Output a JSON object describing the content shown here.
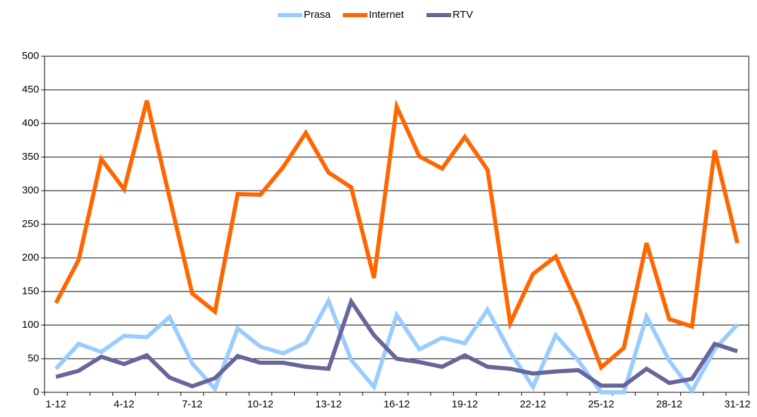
{
  "chart_data": {
    "type": "line",
    "categories": [
      "1-12",
      null,
      null,
      "4-12",
      null,
      null,
      "7-12",
      null,
      null,
      "10-12",
      null,
      null,
      "13-12",
      null,
      null,
      "16-12",
      null,
      null,
      "19-12",
      null,
      null,
      "22-12",
      null,
      null,
      "25-12",
      null,
      null,
      "28-12",
      null,
      null,
      "31-12"
    ],
    "series": [
      {
        "name": "Prasa",
        "color": "#99ccff",
        "values": [
          35,
          72,
          60,
          84,
          82,
          112,
          43,
          5,
          95,
          68,
          58,
          74,
          136,
          48,
          8,
          115,
          64,
          81,
          73,
          123,
          60,
          8,
          85,
          47,
          0,
          0,
          113,
          47,
          2,
          64,
          101
        ]
      },
      {
        "name": "Internet",
        "color": "#ff6600",
        "values": [
          133,
          197,
          347,
          302,
          434,
          290,
          147,
          120,
          295,
          294,
          335,
          386,
          327,
          305,
          170,
          425,
          351,
          333,
          380,
          331,
          103,
          176,
          202,
          127,
          37,
          66,
          222,
          109,
          98,
          360,
          222
        ]
      },
      {
        "name": "RTV",
        "color": "#666699",
        "values": [
          23,
          32,
          53,
          42,
          55,
          22,
          9,
          21,
          54,
          44,
          44,
          38,
          35,
          135,
          85,
          50,
          45,
          38,
          55,
          38,
          35,
          28,
          31,
          33,
          10,
          10,
          35,
          14,
          20,
          72,
          61
        ]
      }
    ],
    "ylim": [
      0,
      500
    ],
    "yticks": [
      0,
      50,
      100,
      150,
      200,
      250,
      300,
      350,
      400,
      450,
      500
    ],
    "grid": true,
    "legend": "top"
  }
}
